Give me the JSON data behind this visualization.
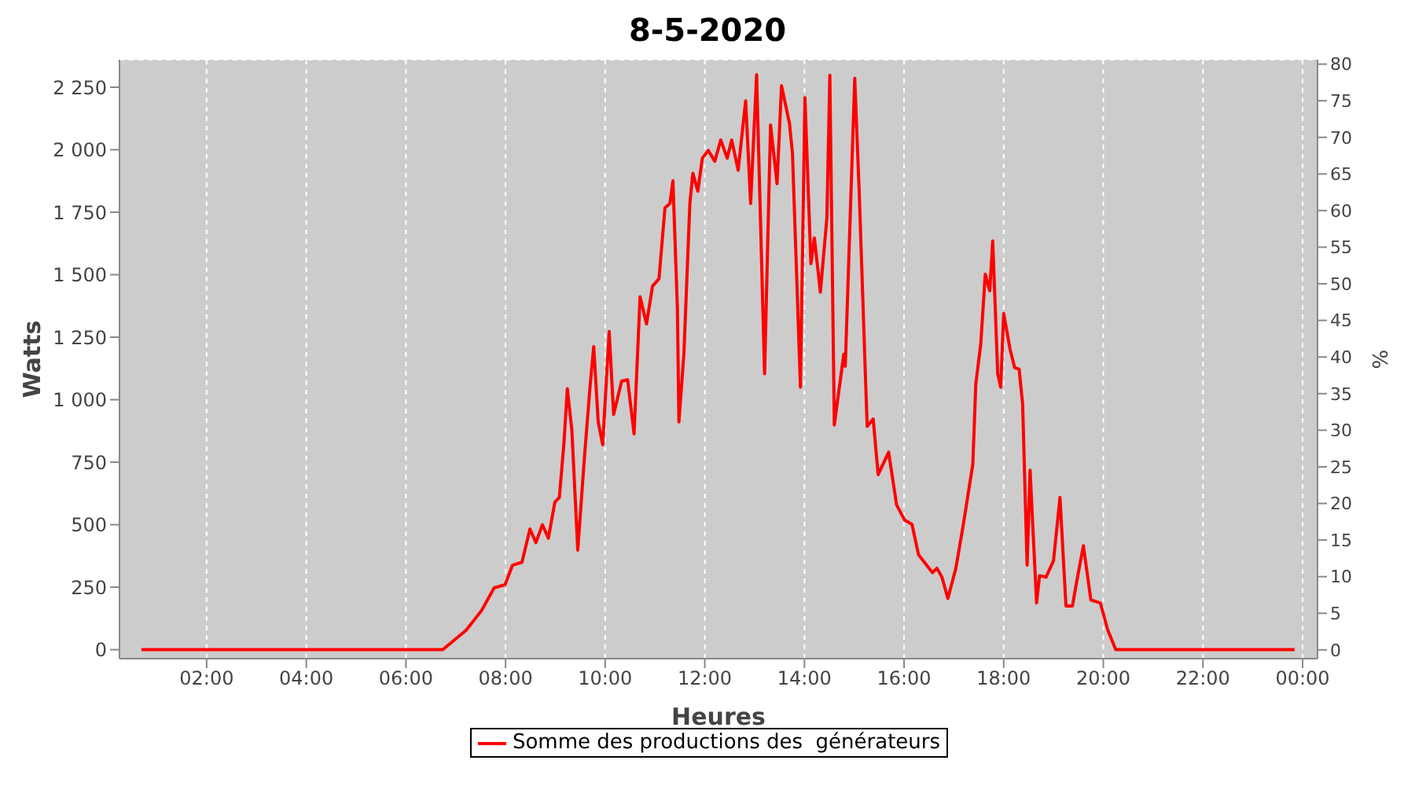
{
  "chart_data": {
    "type": "line",
    "title": "8-5-2020",
    "xlabel": "Heures",
    "ylabel": "Watts",
    "y2label": "%",
    "xlim": [
      0.25,
      24.3
    ],
    "xticks": [
      {
        "value": 2,
        "label": "02:00"
      },
      {
        "value": 4,
        "label": "04:00"
      },
      {
        "value": 6,
        "label": "06:00"
      },
      {
        "value": 8,
        "label": "08:00"
      },
      {
        "value": 10,
        "label": "10:00"
      },
      {
        "value": 12,
        "label": "12:00"
      },
      {
        "value": 14,
        "label": "14:00"
      },
      {
        "value": 16,
        "label": "16:00"
      },
      {
        "value": 18,
        "label": "18:00"
      },
      {
        "value": 20,
        "label": "20:00"
      },
      {
        "value": 22,
        "label": "22:00"
      },
      {
        "value": 24,
        "label": "00:00"
      }
    ],
    "ylim": [
      -36,
      2360
    ],
    "yticks": [
      0,
      250,
      500,
      750,
      {
        "value": 1000,
        "label": "1 000"
      },
      {
        "value": 1250,
        "label": "1 250"
      },
      {
        "value": 1500,
        "label": "1 500"
      },
      {
        "value": 1750,
        "label": "1 750"
      },
      {
        "value": 2000,
        "label": "2 000"
      },
      {
        "value": 2250,
        "label": "2 250"
      }
    ],
    "y2lim": [
      -1.2,
      80.6
    ],
    "y2ticks": [
      0,
      5,
      10,
      15,
      20,
      25,
      30,
      35,
      40,
      45,
      50,
      55,
      60,
      65,
      70,
      75,
      80
    ],
    "grid": true,
    "legend": "bottom",
    "marker": "none",
    "line_style": "solid",
    "x": [
      0.69,
      6.74,
      7.21,
      7.52,
      7.77,
      7.99,
      8.14,
      8.33,
      8.49,
      8.61,
      8.74,
      8.86,
      8.99,
      9.08,
      9.17,
      9.24,
      9.33,
      9.45,
      9.58,
      9.7,
      9.77,
      9.86,
      9.95,
      10.08,
      10.17,
      10.33,
      10.45,
      10.58,
      10.7,
      10.83,
      10.95,
      11.08,
      11.2,
      11.3,
      11.36,
      11.45,
      11.48,
      11.58,
      11.7,
      11.76,
      11.86,
      11.95,
      12.07,
      12.2,
      12.32,
      12.45,
      12.54,
      12.67,
      12.82,
      12.92,
      13.04,
      13.2,
      13.32,
      13.45,
      13.54,
      13.7,
      13.76,
      13.92,
      14.01,
      14.13,
      14.2,
      14.32,
      14.45,
      14.51,
      14.6,
      14.79,
      14.82,
      15.01,
      15.1,
      15.23,
      15.26,
      15.38,
      15.48,
      15.69,
      15.85,
      16.01,
      16.16,
      16.29,
      16.57,
      16.66,
      16.76,
      16.88,
      17.04,
      17.19,
      17.38,
      17.44,
      17.54,
      17.63,
      17.72,
      17.78,
      17.88,
      17.94,
      18.0,
      18.13,
      18.22,
      18.31,
      18.38,
      18.47,
      18.53,
      18.66,
      18.72,
      18.85,
      19.0,
      19.13,
      19.25,
      19.38,
      19.47,
      19.6,
      19.75,
      19.94,
      20.09,
      20.25,
      23.84
    ],
    "series": [
      {
        "name": "Somme des productions des  générateurs",
        "color": "#ff0000",
        "values": [
          0,
          0,
          78,
          157,
          247,
          260,
          338,
          350,
          483,
          428,
          500,
          446,
          590,
          609,
          820,
          1044,
          881,
          398,
          760,
          1062,
          1212,
          911,
          820,
          1273,
          941,
          1074,
          1080,
          863,
          1412,
          1303,
          1454,
          1484,
          1767,
          1785,
          1876,
          1363,
          911,
          1182,
          1785,
          1906,
          1834,
          1966,
          1997,
          1954,
          2039,
          1966,
          2039,
          1918,
          2196,
          1785,
          2300,
          1104,
          2099,
          1864,
          2256,
          2105,
          1985,
          1050,
          2208,
          1544,
          1647,
          1430,
          1725,
          2298,
          899,
          1182,
          1134,
          2286,
          1828,
          1062,
          893,
          923,
          700,
          790,
          579,
          519,
          501,
          380,
          308,
          326,
          290,
          205,
          326,
          501,
          742,
          1062,
          1224,
          1502,
          1436,
          1635,
          1104,
          1050,
          1345,
          1200,
          1128,
          1122,
          983,
          338,
          718,
          187,
          296,
          290,
          356,
          609,
          175,
          175,
          277,
          416,
          199,
          187,
          78,
          0,
          0
        ]
      }
    ]
  }
}
